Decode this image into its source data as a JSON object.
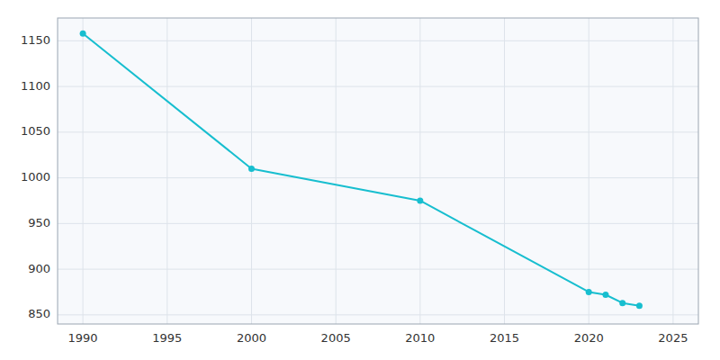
{
  "chart_data": {
    "type": "line",
    "x": [
      1990,
      2000,
      2010,
      2020,
      2021,
      2022,
      2023
    ],
    "values": [
      1158,
      1010,
      975,
      875,
      872,
      863,
      860
    ],
    "color": "#17becf",
    "marker": "circle",
    "xlim": [
      1988.5,
      2026.5
    ],
    "ylim": [
      840,
      1175
    ],
    "xticks": [
      1990,
      1995,
      2000,
      2005,
      2010,
      2015,
      2020,
      2025
    ],
    "yticks": [
      850,
      900,
      950,
      1000,
      1050,
      1100,
      1150
    ],
    "grid": true
  }
}
